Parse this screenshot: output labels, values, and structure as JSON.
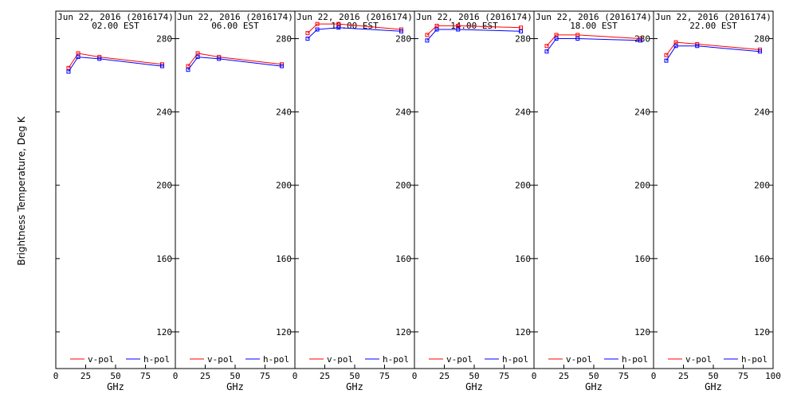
{
  "figure": {
    "ylabel": "Brightness Temperature, Deg K",
    "colors": {
      "vpol": "#ff0000",
      "hpol": "#0000ff",
      "axis": "#000000"
    }
  },
  "chart_data": [
    {
      "type": "line",
      "title": "Jun 22, 2016 (2016174)",
      "subtitle": "02.00 EST",
      "xlabel": "GHz",
      "xlim": [
        0,
        100
      ],
      "ylim": [
        100,
        295
      ],
      "xticks": [
        "0",
        "25",
        "50",
        "75",
        "100"
      ],
      "yticks": [
        "120",
        "160",
        "200",
        "240",
        "280"
      ],
      "legend": "bottom",
      "x": [
        10.65,
        18.7,
        36.5,
        89.0
      ],
      "series": [
        {
          "name": "v-pol",
          "color": "#ff0000",
          "values": [
            264,
            272,
            270,
            266
          ]
        },
        {
          "name": "h-pol",
          "color": "#0000ff",
          "values": [
            262,
            270,
            269,
            265
          ]
        }
      ]
    },
    {
      "type": "line",
      "title": "Jun 22, 2016 (2016174)",
      "subtitle": "06.00 EST",
      "xlabel": "GHz",
      "xlim": [
        0,
        100
      ],
      "ylim": [
        100,
        295
      ],
      "xticks": [
        "0",
        "25",
        "50",
        "75",
        "100"
      ],
      "yticks": [
        "120",
        "160",
        "200",
        "240",
        "280"
      ],
      "legend": "bottom",
      "x": [
        10.65,
        18.7,
        36.5,
        89.0
      ],
      "series": [
        {
          "name": "v-pol",
          "color": "#ff0000",
          "values": [
            265,
            272,
            270,
            266
          ]
        },
        {
          "name": "h-pol",
          "color": "#0000ff",
          "values": [
            263,
            270,
            269,
            265
          ]
        }
      ]
    },
    {
      "type": "line",
      "title": "Jun 22, 2016 (2016174)",
      "subtitle": "10.00 EST",
      "xlabel": "GHz",
      "xlim": [
        0,
        100
      ],
      "ylim": [
        100,
        295
      ],
      "xticks": [
        "0",
        "25",
        "50",
        "75",
        "100"
      ],
      "yticks": [
        "120",
        "160",
        "200",
        "240",
        "280"
      ],
      "legend": "bottom",
      "x": [
        10.65,
        18.7,
        36.5,
        89.0
      ],
      "series": [
        {
          "name": "v-pol",
          "color": "#ff0000",
          "values": [
            283,
            288,
            288,
            285
          ]
        },
        {
          "name": "h-pol",
          "color": "#0000ff",
          "values": [
            280,
            285,
            286,
            284
          ]
        }
      ]
    },
    {
      "type": "line",
      "title": "Jun 22, 2016 (2016174)",
      "subtitle": "14.00 EST",
      "xlabel": "GHz",
      "xlim": [
        0,
        100
      ],
      "ylim": [
        100,
        295
      ],
      "xticks": [
        "0",
        "25",
        "50",
        "75",
        "100"
      ],
      "yticks": [
        "120",
        "160",
        "200",
        "240",
        "280"
      ],
      "legend": "bottom",
      "x": [
        10.65,
        18.7,
        36.5,
        89.0
      ],
      "series": [
        {
          "name": "v-pol",
          "color": "#ff0000",
          "values": [
            282,
            287,
            287,
            286
          ]
        },
        {
          "name": "h-pol",
          "color": "#0000ff",
          "values": [
            279,
            285,
            285,
            284
          ]
        }
      ]
    },
    {
      "type": "line",
      "title": "Jun 22, 2016 (2016174)",
      "subtitle": "18.00 EST",
      "xlabel": "GHz",
      "xlim": [
        0,
        100
      ],
      "ylim": [
        100,
        295
      ],
      "xticks": [
        "0",
        "25",
        "50",
        "75",
        "100"
      ],
      "yticks": [
        "120",
        "160",
        "200",
        "240",
        "280"
      ],
      "legend": "bottom",
      "x": [
        10.65,
        18.7,
        36.5,
        89.0
      ],
      "series": [
        {
          "name": "v-pol",
          "color": "#ff0000",
          "values": [
            276,
            282,
            282,
            280
          ]
        },
        {
          "name": "h-pol",
          "color": "#0000ff",
          "values": [
            273,
            280,
            280,
            279
          ]
        }
      ]
    },
    {
      "type": "line",
      "title": "Jun 22, 2016 (2016174)",
      "subtitle": "22.00 EST",
      "xlabel": "GHz",
      "xlim": [
        0,
        100
      ],
      "ylim": [
        100,
        295
      ],
      "xticks": [
        "0",
        "25",
        "50",
        "75",
        "100"
      ],
      "yticks": [
        "120",
        "160",
        "200",
        "240",
        "280"
      ],
      "legend": "bottom",
      "x": [
        10.65,
        18.7,
        36.5,
        89.0
      ],
      "series": [
        {
          "name": "v-pol",
          "color": "#ff0000",
          "values": [
            271,
            278,
            277,
            274
          ]
        },
        {
          "name": "h-pol",
          "color": "#0000ff",
          "values": [
            268,
            276,
            276,
            273
          ]
        }
      ]
    }
  ]
}
